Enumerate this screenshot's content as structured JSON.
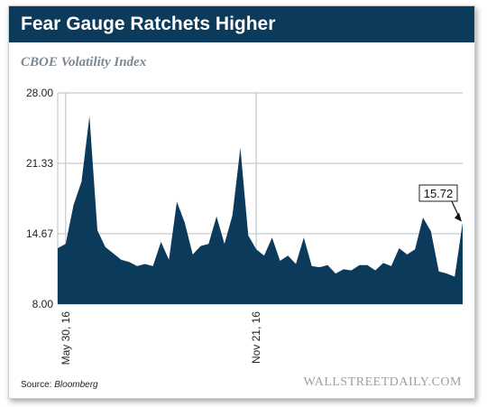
{
  "header": {
    "title": "Fear Gauge Ratchets Higher"
  },
  "subtitle": "CBOE Volatility Index",
  "footer": {
    "source_label": "Source:",
    "source_name": "Bloomberg",
    "brand": "WALLSTREETDAILY.COM"
  },
  "colors": {
    "title_bg": "#0c3a5b",
    "area_fill": "#0c3a5b"
  },
  "chart_data": {
    "type": "area",
    "title": "CBOE Volatility Index",
    "xlabel": "",
    "ylabel": "",
    "ylim": [
      8.0,
      28.0
    ],
    "yticks": [
      "28.00",
      "21.33",
      "14.67",
      "8.00"
    ],
    "xtick_labels": [
      "May 30, 16",
      "Nov 21, 16"
    ],
    "grid": true,
    "annotation": {
      "text": "15.72",
      "target": "last point"
    },
    "values": [
      13.3,
      13.7,
      17.4,
      19.6,
      25.8,
      15.0,
      13.4,
      12.8,
      12.2,
      12.0,
      11.6,
      11.8,
      11.6,
      13.9,
      12.2,
      17.7,
      15.7,
      12.7,
      13.5,
      13.7,
      16.3,
      13.7,
      16.4,
      22.8,
      14.5,
      13.2,
      12.6,
      14.3,
      12.1,
      12.6,
      11.8,
      14.3,
      11.6,
      11.5,
      11.7,
      10.9,
      11.3,
      11.2,
      11.7,
      11.7,
      11.2,
      11.9,
      11.6,
      13.3,
      12.7,
      13.2,
      16.2,
      14.9,
      11.1,
      10.9,
      10.6,
      15.72
    ]
  }
}
